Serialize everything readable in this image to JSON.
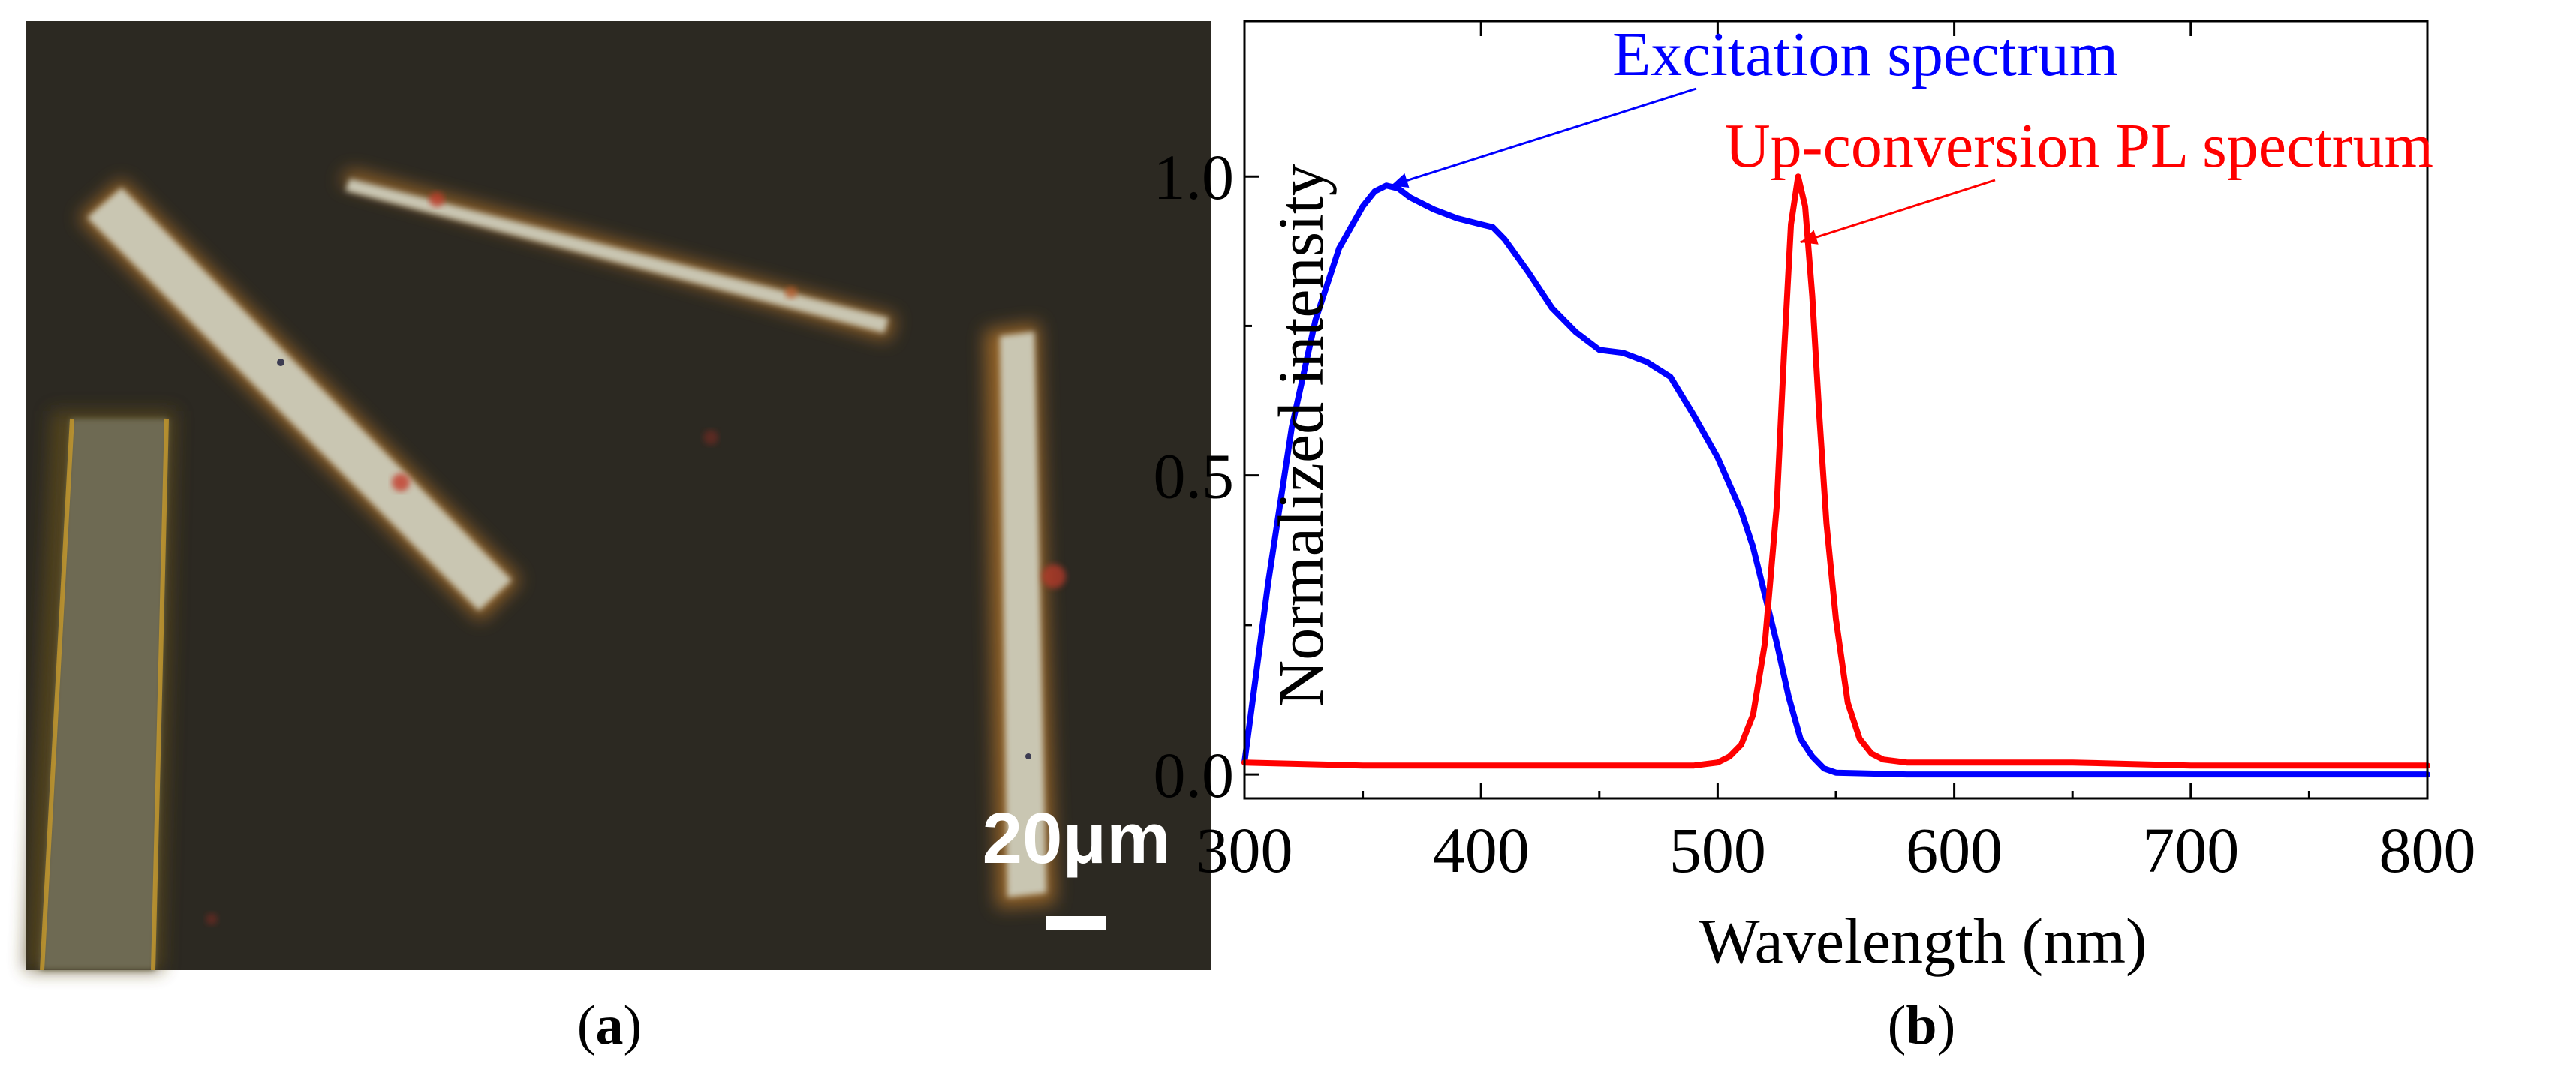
{
  "figure": {
    "panel_a": {
      "caption_open": "(",
      "caption_letter": "a",
      "caption_close": ")",
      "scale_bar_label": "20μm",
      "background_color": "#2c2922",
      "rod_color": "#c9c6b2",
      "rod_edge_color": "#d89a2e"
    },
    "panel_b": {
      "caption_open": "(",
      "caption_letter": "b",
      "caption_close": ")"
    }
  },
  "chart_data": {
    "type": "line",
    "title": "",
    "xlabel": "Wavelength (nm)",
    "ylabel": "Normalized intensity",
    "xlim": [
      300,
      800
    ],
    "ylim": [
      -0.04,
      1.26
    ],
    "xticks": [
      300,
      400,
      500,
      600,
      700,
      800
    ],
    "xtick_labels": [
      "300",
      "400",
      "500",
      "600",
      "700",
      "800"
    ],
    "yticks": [
      0.0,
      0.5,
      1.0
    ],
    "ytick_labels": [
      "0.0",
      "0.5",
      "1.0"
    ],
    "grid": false,
    "series": [
      {
        "name": "Excitation spectrum",
        "color": "#0000ff",
        "x": [
          300,
          310,
          320,
          330,
          340,
          350,
          355,
          360,
          365,
          370,
          380,
          390,
          400,
          405,
          410,
          420,
          430,
          440,
          450,
          460,
          470,
          480,
          490,
          500,
          510,
          515,
          520,
          525,
          530,
          535,
          540,
          545,
          550,
          560,
          580,
          600,
          650,
          700,
          750,
          800
        ],
        "y": [
          0.02,
          0.32,
          0.58,
          0.76,
          0.88,
          0.95,
          0.975,
          0.985,
          0.98,
          0.965,
          0.945,
          0.93,
          0.92,
          0.915,
          0.895,
          0.84,
          0.78,
          0.74,
          0.71,
          0.705,
          0.69,
          0.665,
          0.6,
          0.53,
          0.44,
          0.38,
          0.3,
          0.22,
          0.13,
          0.06,
          0.03,
          0.01,
          0.003,
          0.002,
          0.0,
          0.0,
          0.0,
          0.0,
          0.0,
          0.0
        ]
      },
      {
        "name": "Up-conversion PL spectrum",
        "color": "#ff0000",
        "x": [
          300,
          350,
          400,
          450,
          490,
          500,
          505,
          510,
          515,
          520,
          525,
          528,
          531,
          534,
          537,
          540,
          543,
          546,
          550,
          555,
          560,
          565,
          570,
          580,
          600,
          650,
          700,
          750,
          800
        ],
        "y": [
          0.02,
          0.015,
          0.015,
          0.015,
          0.015,
          0.02,
          0.03,
          0.05,
          0.1,
          0.22,
          0.45,
          0.7,
          0.92,
          1.0,
          0.95,
          0.8,
          0.6,
          0.42,
          0.26,
          0.12,
          0.06,
          0.035,
          0.025,
          0.02,
          0.02,
          0.02,
          0.015,
          0.015,
          0.015
        ]
      }
    ],
    "annotations": [
      {
        "text": "Excitation spectrum",
        "color": "#0000ff",
        "points_to": [
          362,
          0.985
        ]
      },
      {
        "text": "Up-conversion PL spectrum",
        "color": "#ff0000",
        "points_to": [
          535,
          0.89
        ]
      }
    ]
  }
}
